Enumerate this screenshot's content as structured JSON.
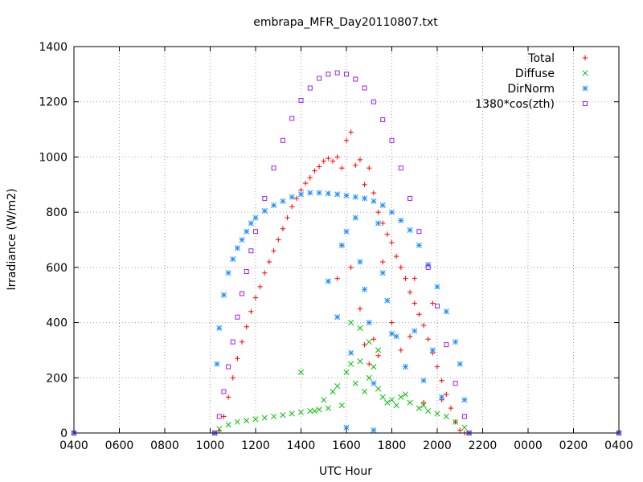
{
  "chart_data": {
    "type": "scatter",
    "title": "embrapa_MFR_Day20110807.txt",
    "xlabel": "UTC Hour",
    "ylabel": "Irradiance (W/m2)",
    "xlim": [
      4,
      28
    ],
    "ylim": [
      0,
      1400
    ],
    "xtick_values": [
      4,
      6,
      8,
      10,
      12,
      14,
      16,
      18,
      20,
      22,
      24,
      26,
      28
    ],
    "xtick_labels": [
      "0400",
      "0600",
      "0800",
      "1000",
      "1200",
      "1400",
      "1600",
      "1800",
      "2000",
      "2200",
      "0000",
      "0200",
      "0400"
    ],
    "ytick_values": [
      0,
      200,
      400,
      600,
      800,
      1000,
      1200,
      1400
    ],
    "ytick_labels": [
      "0",
      "200",
      "400",
      "600",
      "800",
      "1000",
      "1200",
      "1400"
    ],
    "grid": true,
    "legend_position": "top-right",
    "series": [
      {
        "name": "Total",
        "marker": "plus",
        "color": "#ff0000",
        "points": [
          [
            4,
            0
          ],
          [
            10.2,
            0
          ],
          [
            10.4,
            8
          ],
          [
            10.6,
            60
          ],
          [
            10.8,
            130
          ],
          [
            11.0,
            200
          ],
          [
            11.2,
            270
          ],
          [
            11.4,
            330
          ],
          [
            11.6,
            385
          ],
          [
            11.8,
            440
          ],
          [
            12.0,
            490
          ],
          [
            12.2,
            530
          ],
          [
            12.4,
            580
          ],
          [
            12.6,
            620
          ],
          [
            12.8,
            660
          ],
          [
            13.0,
            700
          ],
          [
            13.2,
            740
          ],
          [
            13.4,
            780
          ],
          [
            13.6,
            820
          ],
          [
            13.8,
            850
          ],
          [
            14.0,
            880
          ],
          [
            14.2,
            905
          ],
          [
            14.4,
            925
          ],
          [
            14.6,
            950
          ],
          [
            14.8,
            965
          ],
          [
            15.0,
            985
          ],
          [
            15.2,
            995
          ],
          [
            15.4,
            985
          ],
          [
            15.6,
            1000
          ],
          [
            15.8,
            960
          ],
          [
            16.0,
            1060
          ],
          [
            16.2,
            1090
          ],
          [
            16.4,
            970
          ],
          [
            16.6,
            990
          ],
          [
            16.8,
            900
          ],
          [
            17.0,
            960
          ],
          [
            17.2,
            870
          ],
          [
            17.4,
            800
          ],
          [
            17.6,
            760
          ],
          [
            17.8,
            720
          ],
          [
            18.0,
            690
          ],
          [
            18.2,
            640
          ],
          [
            18.4,
            600
          ],
          [
            18.6,
            560
          ],
          [
            18.8,
            510
          ],
          [
            19.0,
            470
          ],
          [
            19.2,
            430
          ],
          [
            19.4,
            390
          ],
          [
            19.6,
            340
          ],
          [
            19.8,
            290
          ],
          [
            20.0,
            240
          ],
          [
            20.2,
            190
          ],
          [
            20.4,
            140
          ],
          [
            20.6,
            90
          ],
          [
            20.8,
            40
          ],
          [
            21.0,
            10
          ],
          [
            21.2,
            0
          ],
          [
            28,
            0
          ],
          [
            15.6,
            560
          ],
          [
            15.8,
            680
          ],
          [
            16.2,
            600
          ],
          [
            16.6,
            450
          ],
          [
            16.8,
            320
          ],
          [
            17.0,
            250
          ],
          [
            17.2,
            340
          ],
          [
            17.4,
            280
          ],
          [
            17.6,
            620
          ],
          [
            18.0,
            400
          ],
          [
            18.4,
            300
          ],
          [
            18.8,
            350
          ],
          [
            19.0,
            560
          ],
          [
            19.4,
            110
          ],
          [
            19.8,
            470
          ],
          [
            20.2,
            120
          ]
        ]
      },
      {
        "name": "Diffuse",
        "marker": "cross",
        "color": "#00c000",
        "points": [
          [
            4,
            0
          ],
          [
            10.2,
            0
          ],
          [
            10.4,
            15
          ],
          [
            10.8,
            30
          ],
          [
            11.2,
            40
          ],
          [
            11.6,
            45
          ],
          [
            12.0,
            50
          ],
          [
            12.4,
            55
          ],
          [
            12.8,
            60
          ],
          [
            13.2,
            65
          ],
          [
            13.6,
            70
          ],
          [
            14.0,
            75
          ],
          [
            14.4,
            80
          ],
          [
            14.8,
            85
          ],
          [
            15.2,
            90
          ],
          [
            15.4,
            150
          ],
          [
            15.6,
            170
          ],
          [
            15.8,
            100
          ],
          [
            16.0,
            220
          ],
          [
            16.2,
            250
          ],
          [
            16.4,
            180
          ],
          [
            16.6,
            260
          ],
          [
            16.8,
            150
          ],
          [
            17.0,
            200
          ],
          [
            17.2,
            240
          ],
          [
            17.4,
            160
          ],
          [
            17.6,
            130
          ],
          [
            17.8,
            110
          ],
          [
            18.0,
            120
          ],
          [
            18.4,
            130
          ],
          [
            18.8,
            110
          ],
          [
            19.2,
            90
          ],
          [
            19.6,
            80
          ],
          [
            20.0,
            70
          ],
          [
            20.4,
            60
          ],
          [
            20.8,
            40
          ],
          [
            21.2,
            20
          ],
          [
            21.4,
            0
          ],
          [
            28,
            0
          ],
          [
            14.0,
            220
          ],
          [
            14.6,
            80
          ],
          [
            15.0,
            120
          ],
          [
            16.2,
            400
          ],
          [
            16.6,
            380
          ],
          [
            17.0,
            330
          ],
          [
            17.4,
            300
          ],
          [
            18.2,
            100
          ],
          [
            18.6,
            140
          ],
          [
            19.4,
            100
          ]
        ]
      },
      {
        "name": "DirNorm",
        "marker": "star",
        "color": "#1e90ff",
        "points": [
          [
            4,
            0
          ],
          [
            10.2,
            0
          ],
          [
            10.3,
            250
          ],
          [
            10.4,
            380
          ],
          [
            10.6,
            500
          ],
          [
            10.8,
            580
          ],
          [
            11.0,
            630
          ],
          [
            11.2,
            670
          ],
          [
            11.4,
            700
          ],
          [
            11.6,
            730
          ],
          [
            11.8,
            760
          ],
          [
            12.0,
            780
          ],
          [
            12.4,
            805
          ],
          [
            12.8,
            825
          ],
          [
            13.2,
            840
          ],
          [
            13.6,
            855
          ],
          [
            14.0,
            865
          ],
          [
            14.4,
            870
          ],
          [
            14.8,
            870
          ],
          [
            15.2,
            868
          ],
          [
            15.6,
            865
          ],
          [
            16.0,
            860
          ],
          [
            16.4,
            855
          ],
          [
            16.8,
            850
          ],
          [
            17.2,
            840
          ],
          [
            17.6,
            825
          ],
          [
            18.0,
            800
          ],
          [
            18.4,
            770
          ],
          [
            18.8,
            735
          ],
          [
            19.2,
            680
          ],
          [
            19.6,
            610
          ],
          [
            20.0,
            530
          ],
          [
            20.4,
            440
          ],
          [
            20.8,
            330
          ],
          [
            21.0,
            250
          ],
          [
            21.2,
            120
          ],
          [
            21.4,
            0
          ],
          [
            28,
            0
          ],
          [
            15.2,
            550
          ],
          [
            15.6,
            420
          ],
          [
            15.8,
            680
          ],
          [
            16.2,
            290
          ],
          [
            16.6,
            620
          ],
          [
            16.8,
            520
          ],
          [
            17.0,
            400
          ],
          [
            17.2,
            180
          ],
          [
            17.6,
            580
          ],
          [
            17.8,
            480
          ],
          [
            18.2,
            350
          ],
          [
            18.6,
            240
          ],
          [
            19.0,
            370
          ],
          [
            19.4,
            190
          ],
          [
            19.8,
            300
          ],
          [
            20.2,
            130
          ],
          [
            16.0,
            730
          ],
          [
            16.4,
            780
          ],
          [
            17.4,
            760
          ],
          [
            18.0,
            360
          ],
          [
            16.0,
            20
          ],
          [
            17.2,
            10
          ]
        ]
      },
      {
        "name": "1380*cos(zth)",
        "marker": "box",
        "color": "#a020f0",
        "points": [
          [
            4,
            0
          ],
          [
            10.2,
            0
          ],
          [
            10.4,
            60
          ],
          [
            10.6,
            150
          ],
          [
            10.8,
            240
          ],
          [
            11.0,
            330
          ],
          [
            11.2,
            420
          ],
          [
            11.4,
            505
          ],
          [
            11.6,
            585
          ],
          [
            11.8,
            660
          ],
          [
            12.0,
            730
          ],
          [
            12.4,
            850
          ],
          [
            12.8,
            960
          ],
          [
            13.2,
            1060
          ],
          [
            13.6,
            1140
          ],
          [
            14.0,
            1205
          ],
          [
            14.4,
            1250
          ],
          [
            14.8,
            1285
          ],
          [
            15.2,
            1300
          ],
          [
            15.6,
            1305
          ],
          [
            16.0,
            1300
          ],
          [
            16.4,
            1282
          ],
          [
            16.8,
            1250
          ],
          [
            17.2,
            1200
          ],
          [
            17.6,
            1135
          ],
          [
            18.0,
            1060
          ],
          [
            18.4,
            960
          ],
          [
            18.8,
            850
          ],
          [
            19.2,
            730
          ],
          [
            19.6,
            600
          ],
          [
            20.0,
            460
          ],
          [
            20.4,
            320
          ],
          [
            20.8,
            180
          ],
          [
            21.2,
            60
          ],
          [
            21.4,
            0
          ],
          [
            28,
            0
          ]
        ]
      }
    ]
  }
}
